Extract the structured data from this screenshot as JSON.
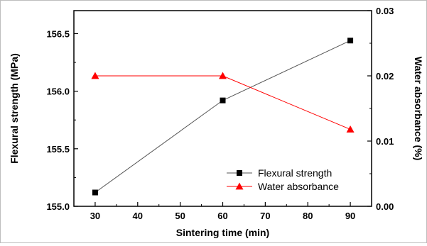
{
  "chart_data": {
    "type": "line",
    "title": "",
    "xlabel": "Sintering time (min)",
    "ylabel_left": "Flexural strength (MPa)",
    "ylabel_right": "Water absorbance (%)",
    "x": [
      30,
      60,
      90
    ],
    "xlim": [
      25,
      95
    ],
    "xticks": [
      30,
      40,
      50,
      60,
      70,
      80,
      90
    ],
    "xtick_labels": [
      "30",
      "40",
      "50",
      "60",
      "70",
      "80",
      "90"
    ],
    "ylim_left": [
      155.0,
      156.7
    ],
    "yticks_left": [
      155.0,
      155.5,
      156.0,
      156.5
    ],
    "ytick_labels_left": [
      "155.0",
      "155.5",
      "156.0",
      "156.5"
    ],
    "ylim_right": [
      0.0,
      0.03
    ],
    "yticks_right": [
      0.0,
      0.01,
      0.02,
      0.03
    ],
    "ytick_labels_right": [
      "0.00",
      "0.01",
      "0.02",
      "0.03"
    ],
    "grid": false,
    "legend_position": "lower-right",
    "series": [
      {
        "name": "Flexural strength",
        "axis": "left",
        "marker": "square",
        "color": "#000000",
        "line_color": "#555555",
        "values": [
          155.12,
          155.92,
          156.44
        ]
      },
      {
        "name": "Water absorbance",
        "axis": "right",
        "marker": "triangle",
        "color": "#ff0000",
        "line_color": "#ff0000",
        "values": [
          0.02,
          0.02,
          0.0118
        ]
      }
    ]
  }
}
